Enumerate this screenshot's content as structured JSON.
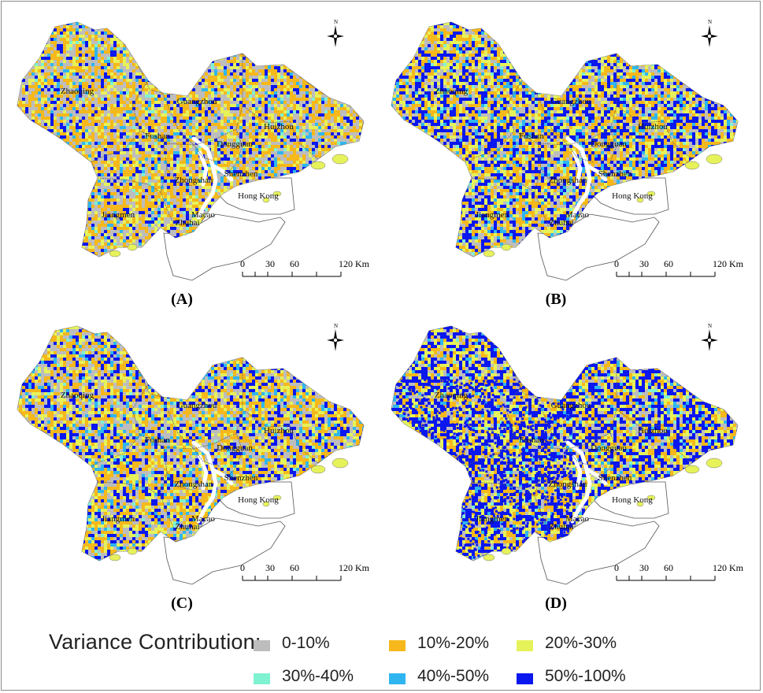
{
  "panels": [
    {
      "id": "A",
      "label": "(A)",
      "mix": [
        0.3,
        0.35,
        0.15,
        0.02,
        0.06,
        0.12
      ]
    },
    {
      "id": "B",
      "label": "(B)",
      "mix": [
        0.18,
        0.25,
        0.18,
        0.02,
        0.1,
        0.27
      ]
    },
    {
      "id": "C",
      "label": "(C)",
      "mix": [
        0.24,
        0.3,
        0.18,
        0.02,
        0.08,
        0.18
      ]
    },
    {
      "id": "D",
      "label": "(D)",
      "mix": [
        0.14,
        0.22,
        0.2,
        0.02,
        0.06,
        0.36
      ]
    }
  ],
  "cities": [
    "Zhaoqing",
    "Guangzhou",
    "Huizhou",
    "Foshan",
    "Dongguan",
    "Shenzhen",
    "Zhongshan",
    "Hong Kong",
    "Jiangmen",
    "Macao",
    "Zhuhai"
  ],
  "north_arrow_label": "N",
  "scale_bar": {
    "ticks": [
      "0",
      "30",
      "60",
      "120 Km"
    ]
  },
  "legend": {
    "title": "Variance Contribution:",
    "items": [
      {
        "label": "0-10%",
        "color": "#bdbdbd"
      },
      {
        "label": "10%-20%",
        "color": "#f6b81a"
      },
      {
        "label": "20%-30%",
        "color": "#e6f25a"
      },
      {
        "label": "30%-40%",
        "color": "#7ff2d2"
      },
      {
        "label": "40%-50%",
        "color": "#2fb6f0"
      },
      {
        "label": "50%-100%",
        "color": "#0a17ee"
      }
    ]
  }
}
